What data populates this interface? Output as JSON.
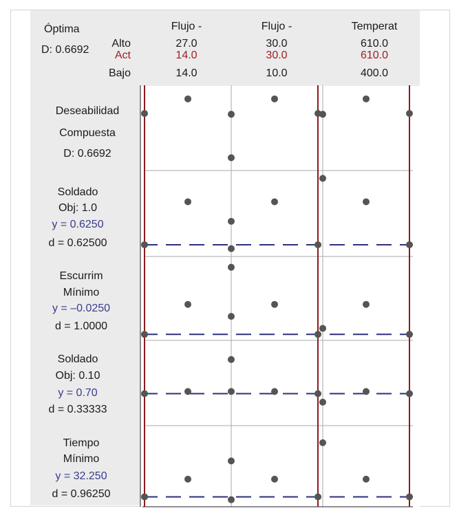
{
  "header": {
    "optima_label": "Óptima",
    "d_label": "D: 0.6692",
    "row_labels": {
      "alto": "Alto",
      "act": "Act",
      "bajo": "Bajo"
    },
    "factors": [
      {
        "name": "Flujo -",
        "alto": "27.0",
        "act": "14.0",
        "bajo": "14.0"
      },
      {
        "name": "Flujo -",
        "alto": "30.0",
        "act": "30.0",
        "bajo": "10.0"
      },
      {
        "name": "Temperat",
        "alto": "610.0",
        "act": "610.0",
        "bajo": "400.0"
      }
    ]
  },
  "rows": [
    {
      "lines": [
        "Deseabilidad",
        "Compuesta",
        "D: 0.6692"
      ],
      "y_line": "",
      "d_line": ""
    },
    {
      "lines": [
        "Soldado",
        "Obj: 1.0"
      ],
      "y_line": "y = 0.6250",
      "d_line": "d = 0.62500"
    },
    {
      "lines": [
        "Escurrim",
        "Mínimo"
      ],
      "y_line": "y = –0.0250",
      "d_line": "d = 1.0000"
    },
    {
      "lines": [
        "Soldado",
        "Obj: 0.10"
      ],
      "y_line": "y = 0.70",
      "d_line": "d = 0.33333"
    },
    {
      "lines": [
        "Tiempo",
        "Mínimo"
      ],
      "y_line": "y = 32.250",
      "d_line": "d = 0.96250"
    }
  ],
  "colors": {
    "current_setting": "#8b1a1e",
    "response_dashed": "#2b2f7a",
    "points": "#555555",
    "grid": "#a8a8a8"
  },
  "chart_data": {
    "type": "scatter",
    "title": "Óptima",
    "factors": [
      {
        "name": "Flujo -",
        "low": 14.0,
        "high": 27.0,
        "current": 14.0,
        "levels": [
          14.0,
          20.5,
          27.0
        ]
      },
      {
        "name": "Flujo -",
        "low": 10.0,
        "high": 30.0,
        "current": 30.0,
        "levels": [
          10.0,
          20.0,
          30.0
        ]
      },
      {
        "name": "Temperat",
        "low": 400.0,
        "high": 610.0,
        "current": 610.0,
        "levels": [
          400.0,
          505.0,
          610.0
        ]
      }
    ],
    "responses": [
      {
        "name": "Deseabilidad Compuesta",
        "d": 0.6692,
        "current": null,
        "points": [
          [
            [
              0,
              0.6692
            ],
            [
              1,
              0.84
            ],
            [
              2,
              0.66
            ]
          ],
          [
            [
              0,
              0.15
            ],
            [
              1,
              0.84
            ],
            [
              2,
              0.6692
            ]
          ],
          [
            [
              0,
              0.66
            ],
            [
              1,
              0.84
            ],
            [
              2,
              0.6692
            ]
          ]
        ]
      },
      {
        "name": "Soldado",
        "goal": "Obj: 1.0",
        "y": 0.625,
        "d": 0.625,
        "points": [
          [
            [
              0,
              0.625
            ],
            [
              1,
              0.9
            ],
            [
              2,
              0.775
            ]
          ],
          [
            [
              0,
              0.6
            ],
            [
              1,
              0.9
            ],
            [
              2,
              0.625
            ]
          ],
          [
            [
              0,
              1.05
            ],
            [
              1,
              0.9
            ],
            [
              2,
              0.625
            ]
          ]
        ]
      },
      {
        "name": "Escurrim Mínimo",
        "y": -0.025,
        "d": 1.0,
        "points": [
          [
            [
              0,
              -0.025
            ],
            [
              1,
              0.1
            ],
            [
              2,
              0.05
            ]
          ],
          [
            [
              0,
              0.255
            ],
            [
              1,
              0.1
            ],
            [
              2,
              -0.025
            ]
          ],
          [
            [
              0,
              -0.0
            ],
            [
              1,
              0.1
            ],
            [
              2,
              -0.025
            ]
          ]
        ]
      },
      {
        "name": "Soldado",
        "goal": "Obj: 0.10",
        "y": 0.7,
        "d": 0.33333,
        "points": [
          [
            [
              0,
              0.7
            ],
            [
              1,
              0.71
            ],
            [
              2,
              0.71
            ]
          ],
          [
            [
              0,
              0.86
            ],
            [
              1,
              0.71
            ],
            [
              2,
              0.7
            ]
          ],
          [
            [
              0,
              0.66
            ],
            [
              1,
              0.71
            ],
            [
              2,
              0.7
            ]
          ]
        ]
      },
      {
        "name": "Tiempo Mínimo",
        "y": 32.25,
        "d": 0.9625,
        "points": [
          [
            [
              0,
              32.25
            ],
            [
              1,
              33.8
            ],
            [
              2,
              35.4
            ]
          ],
          [
            [
              0,
              32.0
            ],
            [
              1,
              33.8
            ],
            [
              2,
              32.25
            ]
          ],
          [
            [
              0,
              37.0
            ],
            [
              1,
              33.8
            ],
            [
              2,
              32.25
            ]
          ]
        ]
      }
    ]
  }
}
